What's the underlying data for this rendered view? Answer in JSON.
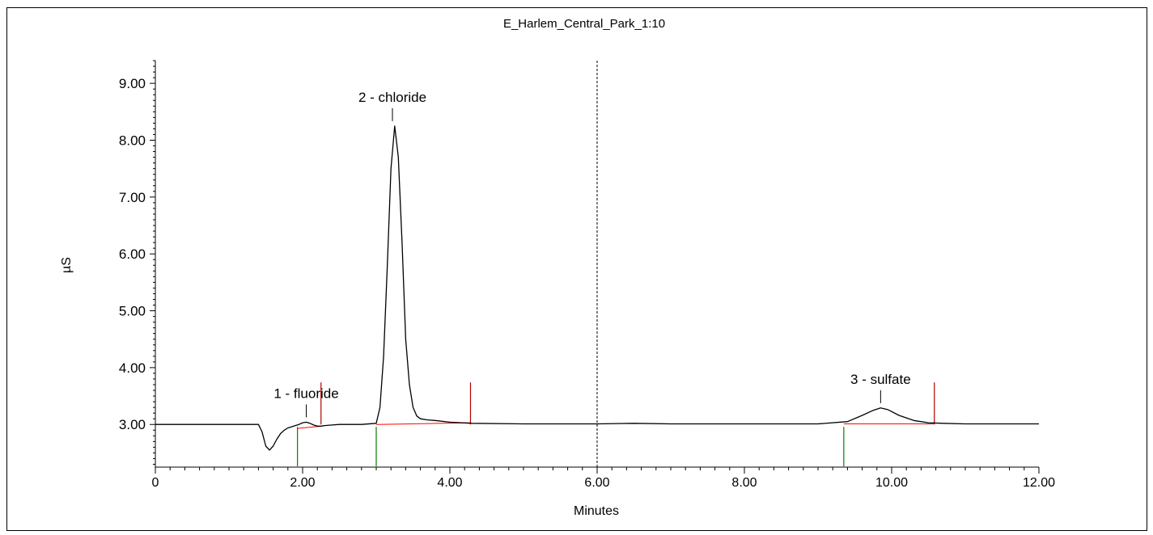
{
  "chart_data": {
    "type": "line",
    "title": "E_Harlem_Central_Park_1:10",
    "xlabel": "Minutes",
    "ylabel": "µS",
    "xlim": [
      0,
      12
    ],
    "ylim": [
      2.25,
      9.4
    ],
    "xticks": [
      0,
      2,
      4,
      6,
      8,
      10,
      12
    ],
    "xtick_labels": [
      "0",
      "2.00",
      "4.00",
      "6.00",
      "8.00",
      "10.00",
      "12.00"
    ],
    "yticks": [
      3,
      4,
      5,
      6,
      7,
      8,
      9
    ],
    "ytick_labels": [
      "3.00",
      "4.00",
      "5.00",
      "6.00",
      "7.00",
      "8.00",
      "9.00"
    ],
    "grid": false,
    "series": [
      {
        "color": "#000000",
        "x": [
          0,
          0.5,
          1.0,
          1.4,
          1.45,
          1.5,
          1.55,
          1.6,
          1.65,
          1.7,
          1.75,
          1.8,
          1.85,
          1.9,
          1.95,
          2.0,
          2.05,
          2.1,
          2.15,
          2.2,
          2.25,
          2.3,
          2.4,
          2.5,
          2.6,
          2.8,
          3.0,
          3.05,
          3.1,
          3.15,
          3.2,
          3.25,
          3.3,
          3.35,
          3.4,
          3.45,
          3.5,
          3.55,
          3.6,
          3.7,
          3.8,
          4.0,
          4.3,
          5.0,
          6.0,
          6.5,
          7.0,
          8.0,
          9.0,
          9.4,
          9.6,
          9.75,
          9.85,
          9.95,
          10.1,
          10.3,
          10.5,
          10.7,
          11.0,
          12.0
        ],
        "values": [
          3.0,
          3.0,
          3.0,
          3.0,
          2.87,
          2.62,
          2.55,
          2.62,
          2.74,
          2.84,
          2.9,
          2.94,
          2.96,
          2.98,
          3.0,
          3.03,
          3.04,
          3.02,
          2.99,
          2.97,
          2.97,
          2.98,
          2.99,
          3.0,
          3.0,
          3.0,
          3.02,
          3.3,
          4.2,
          5.8,
          7.5,
          8.25,
          7.7,
          6.2,
          4.5,
          3.7,
          3.3,
          3.15,
          3.1,
          3.08,
          3.07,
          3.04,
          3.02,
          3.01,
          3.01,
          3.02,
          3.01,
          3.01,
          3.01,
          3.05,
          3.16,
          3.25,
          3.29,
          3.26,
          3.16,
          3.07,
          3.03,
          3.02,
          3.01,
          3.01
        ]
      },
      {
        "color": "#ff0000",
        "segments": [
          {
            "x": [
              1.93,
              2.25
            ],
            "values": [
              2.93,
              2.97
            ]
          },
          {
            "x": [
              3.0,
              4.28
            ],
            "values": [
              3.0,
              3.03
            ]
          },
          {
            "x": [
              9.35,
              10.58
            ],
            "values": [
              3.01,
              3.01
            ]
          }
        ]
      }
    ],
    "peak_starts": {
      "color": "#008000",
      "x": [
        1.93,
        3.0,
        9.35
      ]
    },
    "peak_ends": {
      "color": "#b00000",
      "x": [
        2.25,
        4.28,
        10.58
      ]
    },
    "cursor_line": {
      "x": 6.0,
      "style": "dashed",
      "color": "#000000"
    },
    "annotations": [
      {
        "label": "1 - fluoride",
        "x": 2.05,
        "y": 3.04
      },
      {
        "label": "2 - chloride",
        "x": 3.22,
        "y": 8.25
      },
      {
        "label": "3 - sulfate",
        "x": 9.85,
        "y": 3.29
      }
    ]
  }
}
